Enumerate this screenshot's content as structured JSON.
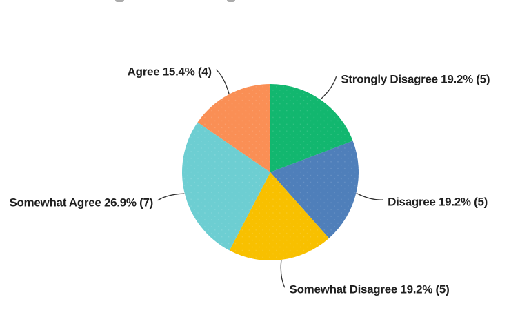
{
  "page": {
    "background_color": "#ffffff"
  },
  "chart_data": {
    "type": "pie",
    "title": "",
    "direction": "clockwise",
    "start_angle_deg": 0,
    "legend_position": "none",
    "labels_style": "outside-with-leader-lines",
    "label_text_color": "#1f1f1f",
    "leader_line_color": "#2e2e2e",
    "slices": [
      {
        "label": "Strongly Disagree",
        "percent": 19.2,
        "count": 5,
        "display": "Strongly Disagree 19.2% (5)",
        "color": "#12b76f"
      },
      {
        "label": "Disagree",
        "percent": 19.2,
        "count": 5,
        "display": "Disagree 19.2% (5)",
        "color": "#4f7fba"
      },
      {
        "label": "Somewhat Disagree",
        "percent": 19.2,
        "count": 5,
        "display": "Somewhat Disagree 19.2% (5)",
        "color": "#f8c000"
      },
      {
        "label": "Somewhat Agree",
        "percent": 26.9,
        "count": 7,
        "display": "Somewhat Agree 26.9% (7)",
        "color": "#6dced2"
      },
      {
        "label": "Agree",
        "percent": 15.4,
        "count": 4,
        "display": "Agree 15.4% (4)",
        "color": "#fa8f55"
      }
    ]
  }
}
